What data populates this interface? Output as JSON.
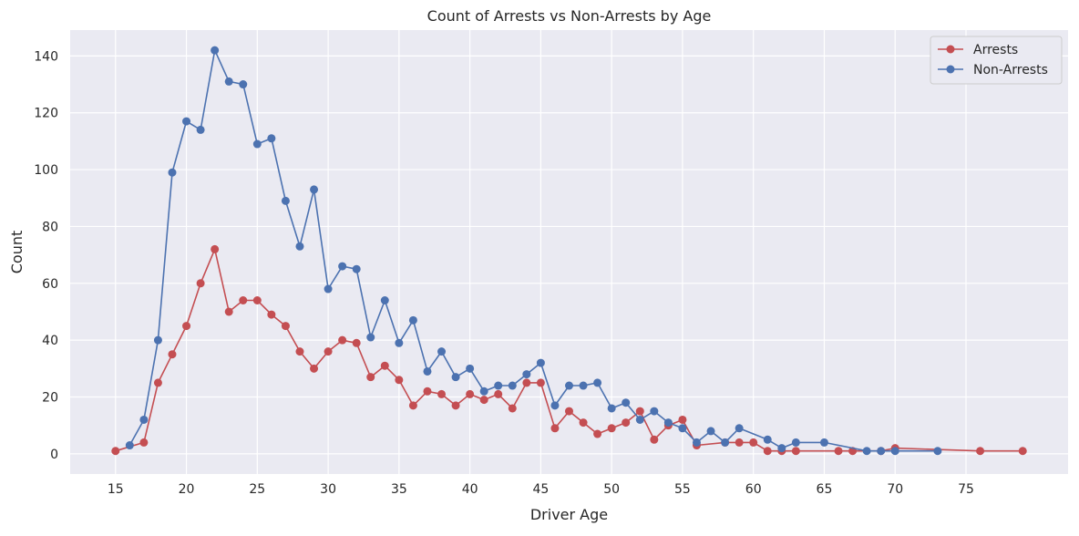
{
  "chart_data": {
    "type": "line",
    "title": "Count of Arrests vs Non-Arrests by Age",
    "xlabel": "Driver Age",
    "ylabel": "Count",
    "xlim": [
      11.8,
      82.2
    ],
    "ylim": [
      -7.1,
      149.1
    ],
    "xticks": [
      15,
      20,
      25,
      30,
      35,
      40,
      45,
      50,
      55,
      60,
      65,
      70,
      75
    ],
    "yticks": [
      0,
      20,
      40,
      60,
      80,
      100,
      120,
      140
    ],
    "grid": true,
    "legend_position": "upper-right",
    "series": [
      {
        "name": "Arrests",
        "color": "#c44e52",
        "marker": "circle",
        "x": [
          15,
          17,
          18,
          19,
          20,
          21,
          22,
          23,
          24,
          25,
          26,
          27,
          28,
          29,
          30,
          31,
          32,
          33,
          34,
          35,
          36,
          37,
          38,
          39,
          40,
          41,
          42,
          43,
          44,
          45,
          46,
          47,
          48,
          49,
          50,
          51,
          52,
          53,
          54,
          55,
          56,
          58,
          59,
          60,
          61,
          62,
          63,
          66,
          67,
          69,
          70,
          76,
          79
        ],
        "y": [
          1,
          4,
          25,
          35,
          45,
          60,
          72,
          50,
          54,
          54,
          49,
          45,
          36,
          30,
          36,
          40,
          39,
          27,
          31,
          26,
          17,
          22,
          21,
          17,
          21,
          19,
          21,
          16,
          25,
          25,
          9,
          15,
          11,
          7,
          9,
          11,
          15,
          5,
          10,
          12,
          3,
          4,
          4,
          4,
          1,
          1,
          1,
          1,
          1,
          1,
          2,
          1,
          1
        ]
      },
      {
        "name": "Non-Arrests",
        "color": "#4c72b0",
        "marker": "circle",
        "x": [
          16,
          17,
          18,
          19,
          20,
          21,
          22,
          23,
          24,
          25,
          26,
          27,
          28,
          29,
          30,
          31,
          32,
          33,
          34,
          35,
          36,
          37,
          38,
          39,
          40,
          41,
          42,
          43,
          44,
          45,
          46,
          47,
          48,
          49,
          50,
          51,
          52,
          53,
          54,
          55,
          56,
          57,
          58,
          59,
          61,
          62,
          63,
          65,
          68,
          69,
          70,
          73
        ],
        "y": [
          3,
          12,
          40,
          99,
          117,
          114,
          142,
          131,
          130,
          109,
          111,
          89,
          73,
          93,
          58,
          66,
          65,
          41,
          54,
          39,
          47,
          29,
          36,
          27,
          30,
          22,
          24,
          24,
          28,
          32,
          17,
          24,
          24,
          25,
          16,
          18,
          12,
          15,
          11,
          9,
          4,
          8,
          4,
          9,
          5,
          2,
          4,
          4,
          1,
          1,
          1,
          1
        ]
      }
    ]
  }
}
